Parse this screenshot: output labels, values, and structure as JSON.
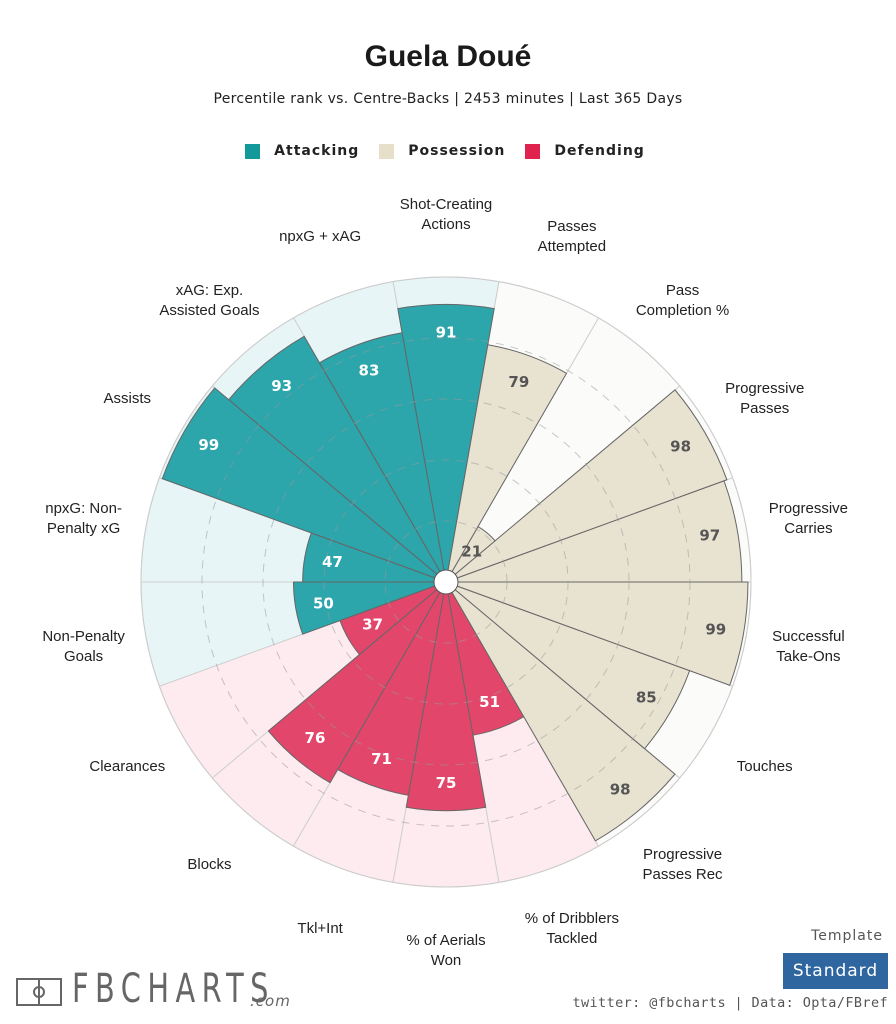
{
  "header": {
    "title": "Guela Doué",
    "subtitle": "Percentile rank vs. Centre-Backs | 2453 minutes | Last 365 Days"
  },
  "colors": {
    "attacking": "#2ca5ab",
    "attacking_bg": "#e8f5f6",
    "possession": "#e8e2d1",
    "possession_bg": "#fbfbf9",
    "defending": "#e2476b",
    "defending_bg": "#fdebef",
    "template_badge": "#2f66a0"
  },
  "legend": [
    {
      "label": "Attacking",
      "color": "#14999b"
    },
    {
      "label": "Possession",
      "color": "#e6dfca"
    },
    {
      "label": "Defending",
      "color": "#e0224e"
    }
  ],
  "footer": {
    "logo_text": "FBCHARTS",
    "logo_suffix": ".com",
    "template_label": "Template",
    "template_value": "Standard",
    "credit": "twitter: @fbcharts | Data: Opta/FBref"
  },
  "chart_data": {
    "type": "pie",
    "subtype": "polar-bar",
    "title": "Guela Doué",
    "subtitle": "Percentile rank vs. Centre-Backs | 2453 minutes | Last 365 Days",
    "rlim": [
      0,
      100
    ],
    "grid": true,
    "grid_values": [
      20,
      40,
      60,
      80
    ],
    "legend_position": "top",
    "series": [
      {
        "metric": "Shot-Creating Actions",
        "value": 91,
        "group": "Attacking"
      },
      {
        "metric": "npxG + xAG",
        "value": 83,
        "group": "Attacking"
      },
      {
        "metric": "xAG: Exp. Assisted Goals",
        "value": 93,
        "group": "Attacking"
      },
      {
        "metric": "Assists",
        "value": 99,
        "group": "Attacking"
      },
      {
        "metric": "npxG: Non-Penalty xG",
        "value": 47,
        "group": "Attacking"
      },
      {
        "metric": "Non-Penalty Goals",
        "value": 50,
        "group": "Attacking"
      },
      {
        "metric": "Clearances",
        "value": 37,
        "group": "Defending"
      },
      {
        "metric": "Blocks",
        "value": 76,
        "group": "Defending"
      },
      {
        "metric": "Tkl+Int",
        "value": 71,
        "group": "Defending"
      },
      {
        "metric": "% of Aerials Won",
        "value": 75,
        "group": "Defending"
      },
      {
        "metric": "% of Dribblers Tackled",
        "value": 51,
        "group": "Defending"
      },
      {
        "metric": "Progressive Passes Rec",
        "value": 98,
        "group": "Possession"
      },
      {
        "metric": "Touches",
        "value": 85,
        "group": "Possession"
      },
      {
        "metric": "Successful Take-Ons",
        "value": 99,
        "group": "Possession"
      },
      {
        "metric": "Progressive Carries",
        "value": 97,
        "group": "Possession"
      },
      {
        "metric": "Progressive Passes",
        "value": 98,
        "group": "Possession"
      },
      {
        "metric": "Pass Completion %",
        "value": 21,
        "group": "Possession"
      },
      {
        "metric": "Passes Attempted",
        "value": 79,
        "group": "Possession"
      }
    ],
    "label_lines": [
      [
        "Shot-Creating",
        "Actions"
      ],
      [
        "npxG + xAG"
      ],
      [
        "xAG: Exp.",
        "Assisted Goals"
      ],
      [
        "Assists"
      ],
      [
        "npxG: Non-",
        "Penalty xG"
      ],
      [
        "Non-Penalty",
        "Goals"
      ],
      [
        "Clearances"
      ],
      [
        "Blocks"
      ],
      [
        "Tkl+Int"
      ],
      [
        "% of Aerials",
        "Won"
      ],
      [
        "% of Dribblers",
        "Tackled"
      ],
      [
        "Progressive",
        "Passes Rec"
      ],
      [
        "Touches"
      ],
      [
        "Successful",
        "Take-Ons"
      ],
      [
        "Progressive",
        "Carries"
      ],
      [
        "Progressive",
        "Passes"
      ],
      [
        "Pass",
        "Completion %"
      ],
      [
        "Passes",
        "Attempted"
      ]
    ]
  }
}
